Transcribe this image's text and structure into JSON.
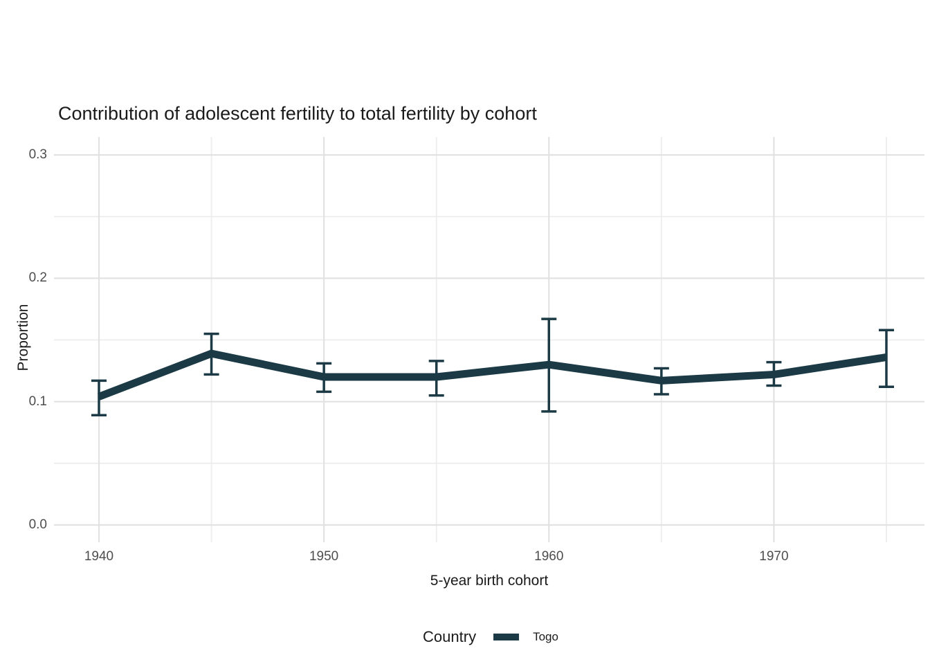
{
  "chart_data": {
    "type": "line",
    "title": "Contribution of adolescent fertility to total fertility by cohort",
    "xlabel": "5-year birth cohort",
    "ylabel": "Proportion",
    "grid": "on",
    "legend": {
      "position": "bottom",
      "title": "Country",
      "entries": [
        {
          "label": "Togo",
          "color": "#1B3A45"
        }
      ]
    },
    "x": [
      1940,
      1945,
      1950,
      1955,
      1960,
      1965,
      1970,
      1975
    ],
    "series": [
      {
        "name": "Togo",
        "color": "#1B3A45",
        "values": [
          0.104,
          0.139,
          0.12,
          0.12,
          0.13,
          0.117,
          0.122,
          0.136
        ],
        "ci_low": [
          0.089,
          0.122,
          0.108,
          0.105,
          0.092,
          0.106,
          0.113,
          0.112
        ],
        "ci_high": [
          0.117,
          0.155,
          0.131,
          0.133,
          0.167,
          0.127,
          0.132,
          0.158
        ]
      }
    ],
    "x_ticks": [
      {
        "label": "1940",
        "value": 1940
      },
      {
        "label": "1950",
        "value": 1950
      },
      {
        "label": "1960",
        "value": 1960
      },
      {
        "label": "1970",
        "value": 1970
      }
    ],
    "x_minor_ticks": [
      1945,
      1955,
      1965,
      1975
    ],
    "y_ticks": [
      {
        "label": "0.0",
        "value": 0.0
      },
      {
        "label": "0.1",
        "value": 0.1
      },
      {
        "label": "0.2",
        "value": 0.2
      },
      {
        "label": "0.3",
        "value": 0.3
      }
    ],
    "y_minor_ticks": [
      0.05,
      0.15,
      0.25
    ],
    "xlim": [
      1938,
      1976.7
    ],
    "ylim": [
      0,
      0.3
    ]
  },
  "colors": {
    "accent": "#1B3A45",
    "grid_major": "#E2E2E2",
    "grid_minor": "#EDEDED",
    "tick_label": "#4D4D4D",
    "text": "#1A1A1A",
    "background": "#FFFFFF"
  }
}
